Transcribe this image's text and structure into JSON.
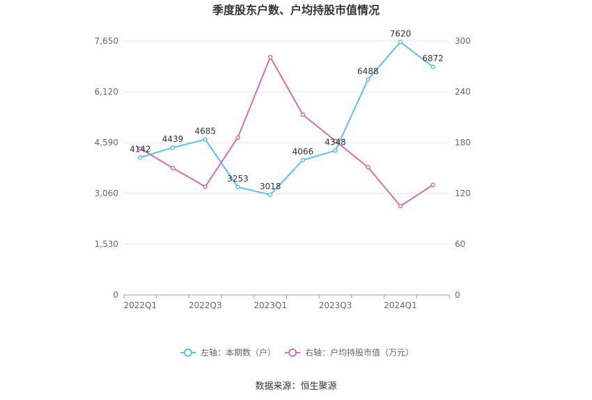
{
  "chart_data": {
    "type": "line",
    "title": "季度股东户数、户均持股市值情况",
    "categories": [
      "2022Q1",
      "2022Q2",
      "2022Q3",
      "2022Q4",
      "2023Q1",
      "2023Q2",
      "2023Q3",
      "2023Q4",
      "2024Q1",
      "2024Q2"
    ],
    "x_tick_labels": [
      "2022Q1",
      "2022Q3",
      "2023Q1",
      "2023Q3",
      "2024Q1"
    ],
    "left_axis": {
      "ticks": [
        "0",
        "1,530",
        "3,060",
        "4,590",
        "6,120",
        "7,650"
      ],
      "ylim": [
        0,
        7650
      ]
    },
    "right_axis": {
      "ticks": [
        "0",
        "60",
        "120",
        "180",
        "240",
        "300"
      ],
      "ylim": [
        0,
        300
      ]
    },
    "series": [
      {
        "name": "左轴：本期数（户）",
        "axis": "left",
        "color": "#5bc0eb",
        "values": [
          4142,
          4439,
          4685,
          3253,
          3018,
          4066,
          4348,
          6488,
          7620,
          6872
        ],
        "labels": [
          "4142",
          "4439",
          "4685",
          "3253",
          "3018",
          "4066",
          "4348",
          "6488",
          "7620",
          "6872"
        ]
      },
      {
        "name": "右轴：户均持股市值（万元）",
        "axis": "right",
        "color": "#d46eb3",
        "values": [
          173,
          150,
          128,
          186,
          281,
          213,
          182,
          151,
          105,
          130
        ]
      }
    ],
    "grid": true,
    "legend_position": "bottom"
  },
  "source": "数据来源：恒生聚源"
}
